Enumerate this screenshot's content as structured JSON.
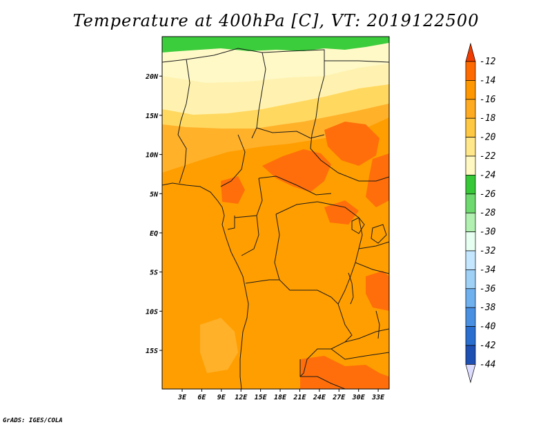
{
  "title": "Temperature at 400hPa [C], VT: 2019122500",
  "footer": "GrADS: IGES/COLA",
  "map": {
    "lat_ticks": [
      {
        "label": "20N",
        "lat": 20
      },
      {
        "label": "15N",
        "lat": 15
      },
      {
        "label": "10N",
        "lat": 10
      },
      {
        "label": "5N",
        "lat": 5
      },
      {
        "label": "EQ",
        "lat": 0
      },
      {
        "label": "5S",
        "lat": -5
      },
      {
        "label": "10S",
        "lat": -10
      },
      {
        "label": "15S",
        "lat": -15
      }
    ],
    "lon_ticks": [
      {
        "label": "3E",
        "lon": 3
      },
      {
        "label": "6E",
        "lon": 6
      },
      {
        "label": "9E",
        "lon": 9
      },
      {
        "label": "12E",
        "lon": 12
      },
      {
        "label": "15E",
        "lon": 15
      },
      {
        "label": "18E",
        "lon": 18
      },
      {
        "label": "21E",
        "lon": 21
      },
      {
        "label": "24E",
        "lon": 24
      },
      {
        "label": "27E",
        "lon": 27
      },
      {
        "label": "30E",
        "lon": 30
      },
      {
        "label": "33E",
        "lon": 33
      }
    ]
  },
  "colorbar": {
    "levels": [
      "-12",
      "-14",
      "-16",
      "-18",
      "-20",
      "-22",
      "-24",
      "-26",
      "-28",
      "-30",
      "-32",
      "-34",
      "-36",
      "-38",
      "-40",
      "-42",
      "-44"
    ],
    "top_color": "#f03c00",
    "bottom_color": "#dcdcff",
    "colors": [
      "#ff6a00",
      "#ff9800",
      "#ffab22",
      "#ffc843",
      "#ffe78a",
      "#fff8c2",
      "#37c837",
      "#6ed96e",
      "#b1f0b1",
      "#e6fff0",
      "#c5e6ff",
      "#9fd0f5",
      "#6fb0ef",
      "#4a90e2",
      "#2a6ed0",
      "#1e4fb2",
      "#0b1a78"
    ]
  },
  "colors": {
    "orange_main": "#ff9e00",
    "orange_dark": "#ff6e0a",
    "orange_light": "#ffb12a",
    "yellow": "#ffd860",
    "cream": "#fff2b0",
    "pale": "#fff9c8",
    "green": "#3ccd3c",
    "border": "#1a1a1a"
  }
}
